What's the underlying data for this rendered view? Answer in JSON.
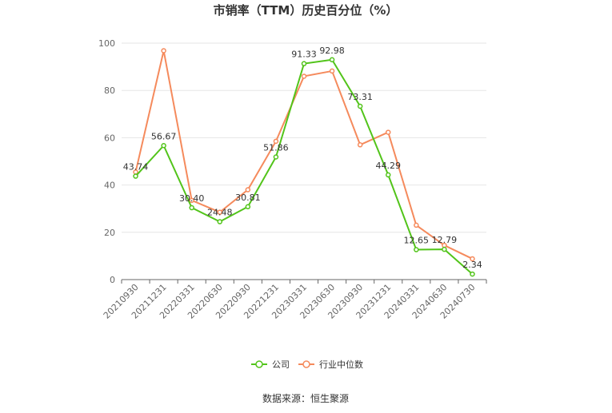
{
  "chart_data": {
    "type": "line",
    "title": "市销率（TTM）历史百分位（%）",
    "source": "数据来源：恒生聚源",
    "categories": [
      "20210930",
      "20211231",
      "20220331",
      "20220630",
      "20220930",
      "20221231",
      "20230331",
      "20230630",
      "20230930",
      "20231231",
      "20240331",
      "20240630",
      "20240730"
    ],
    "ylim": [
      0,
      100
    ],
    "yticks": [
      0,
      20,
      40,
      60,
      80,
      100
    ],
    "grid": true,
    "legend_position": "bottom",
    "series": [
      {
        "name": "公司",
        "color": "#52c41a",
        "values": [
          43.74,
          56.67,
          30.4,
          24.48,
          30.81,
          51.86,
          91.33,
          92.98,
          73.31,
          44.29,
          12.65,
          12.79,
          2.34
        ],
        "labels": [
          "43.74",
          "56.67",
          "30.40",
          "24.48",
          "30.81",
          "51.86",
          "91.33",
          "92.98",
          "73.31",
          "44.29",
          "12.65",
          "12.79",
          "2.34"
        ]
      },
      {
        "name": "行业中位数",
        "color": "#f58a5c",
        "values": [
          45.5,
          96.8,
          33.5,
          28.5,
          38.0,
          58.5,
          86.0,
          88.2,
          57.0,
          62.3,
          23.0,
          14.5,
          8.8
        ]
      }
    ]
  }
}
